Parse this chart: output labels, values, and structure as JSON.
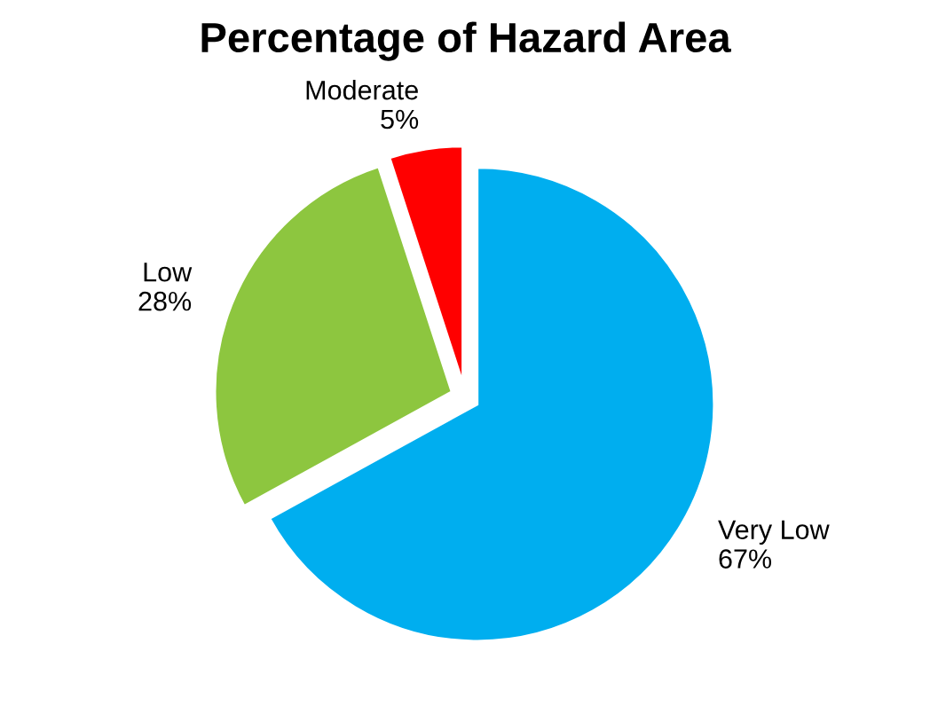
{
  "chart_data": {
    "type": "pie",
    "title": "Percentage of Hazard Area",
    "categories": [
      "Very Low",
      "Low",
      "Moderate"
    ],
    "values": [
      67,
      28,
      5
    ],
    "value_labels": [
      "67%",
      "28%",
      "5%"
    ],
    "colors": [
      "#00aeef",
      "#8dc63f",
      "#ff0000"
    ],
    "legend": false
  }
}
